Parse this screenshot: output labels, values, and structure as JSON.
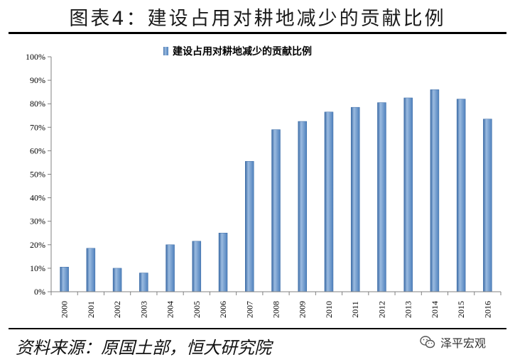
{
  "figure": {
    "title": "图表4：建设占用对耕地减少的贡献比例",
    "source": "资料来源：原国土部，恒大研究院",
    "watermark": "泽平宏观",
    "watermark_icon": "wechat-icon"
  },
  "colors": {
    "bar_fill": "#4f81bd",
    "bar_highlight": "#9bbbe0",
    "axis": "#808080"
  },
  "chart_data": {
    "type": "bar",
    "title": "",
    "xlabel": "",
    "ylabel": "",
    "ylim": [
      0,
      100
    ],
    "y_ticks": [
      "0%",
      "10%",
      "20%",
      "30%",
      "40%",
      "50%",
      "60%",
      "70%",
      "80%",
      "90%",
      "100%"
    ],
    "legend_position": "top-center",
    "categories": [
      "2000",
      "2001",
      "2002",
      "2003",
      "2004",
      "2005",
      "2006",
      "2007",
      "2008",
      "2009",
      "2010",
      "2011",
      "2012",
      "2013",
      "2014",
      "2015",
      "2016"
    ],
    "series": [
      {
        "name": "建设占用对耕地减少的贡献比例",
        "values": [
          10.5,
          18.5,
          10,
          8,
          20,
          21.5,
          25,
          55.5,
          69,
          72.5,
          76.5,
          78.5,
          80.5,
          82.5,
          86,
          82,
          73.5
        ]
      }
    ]
  }
}
